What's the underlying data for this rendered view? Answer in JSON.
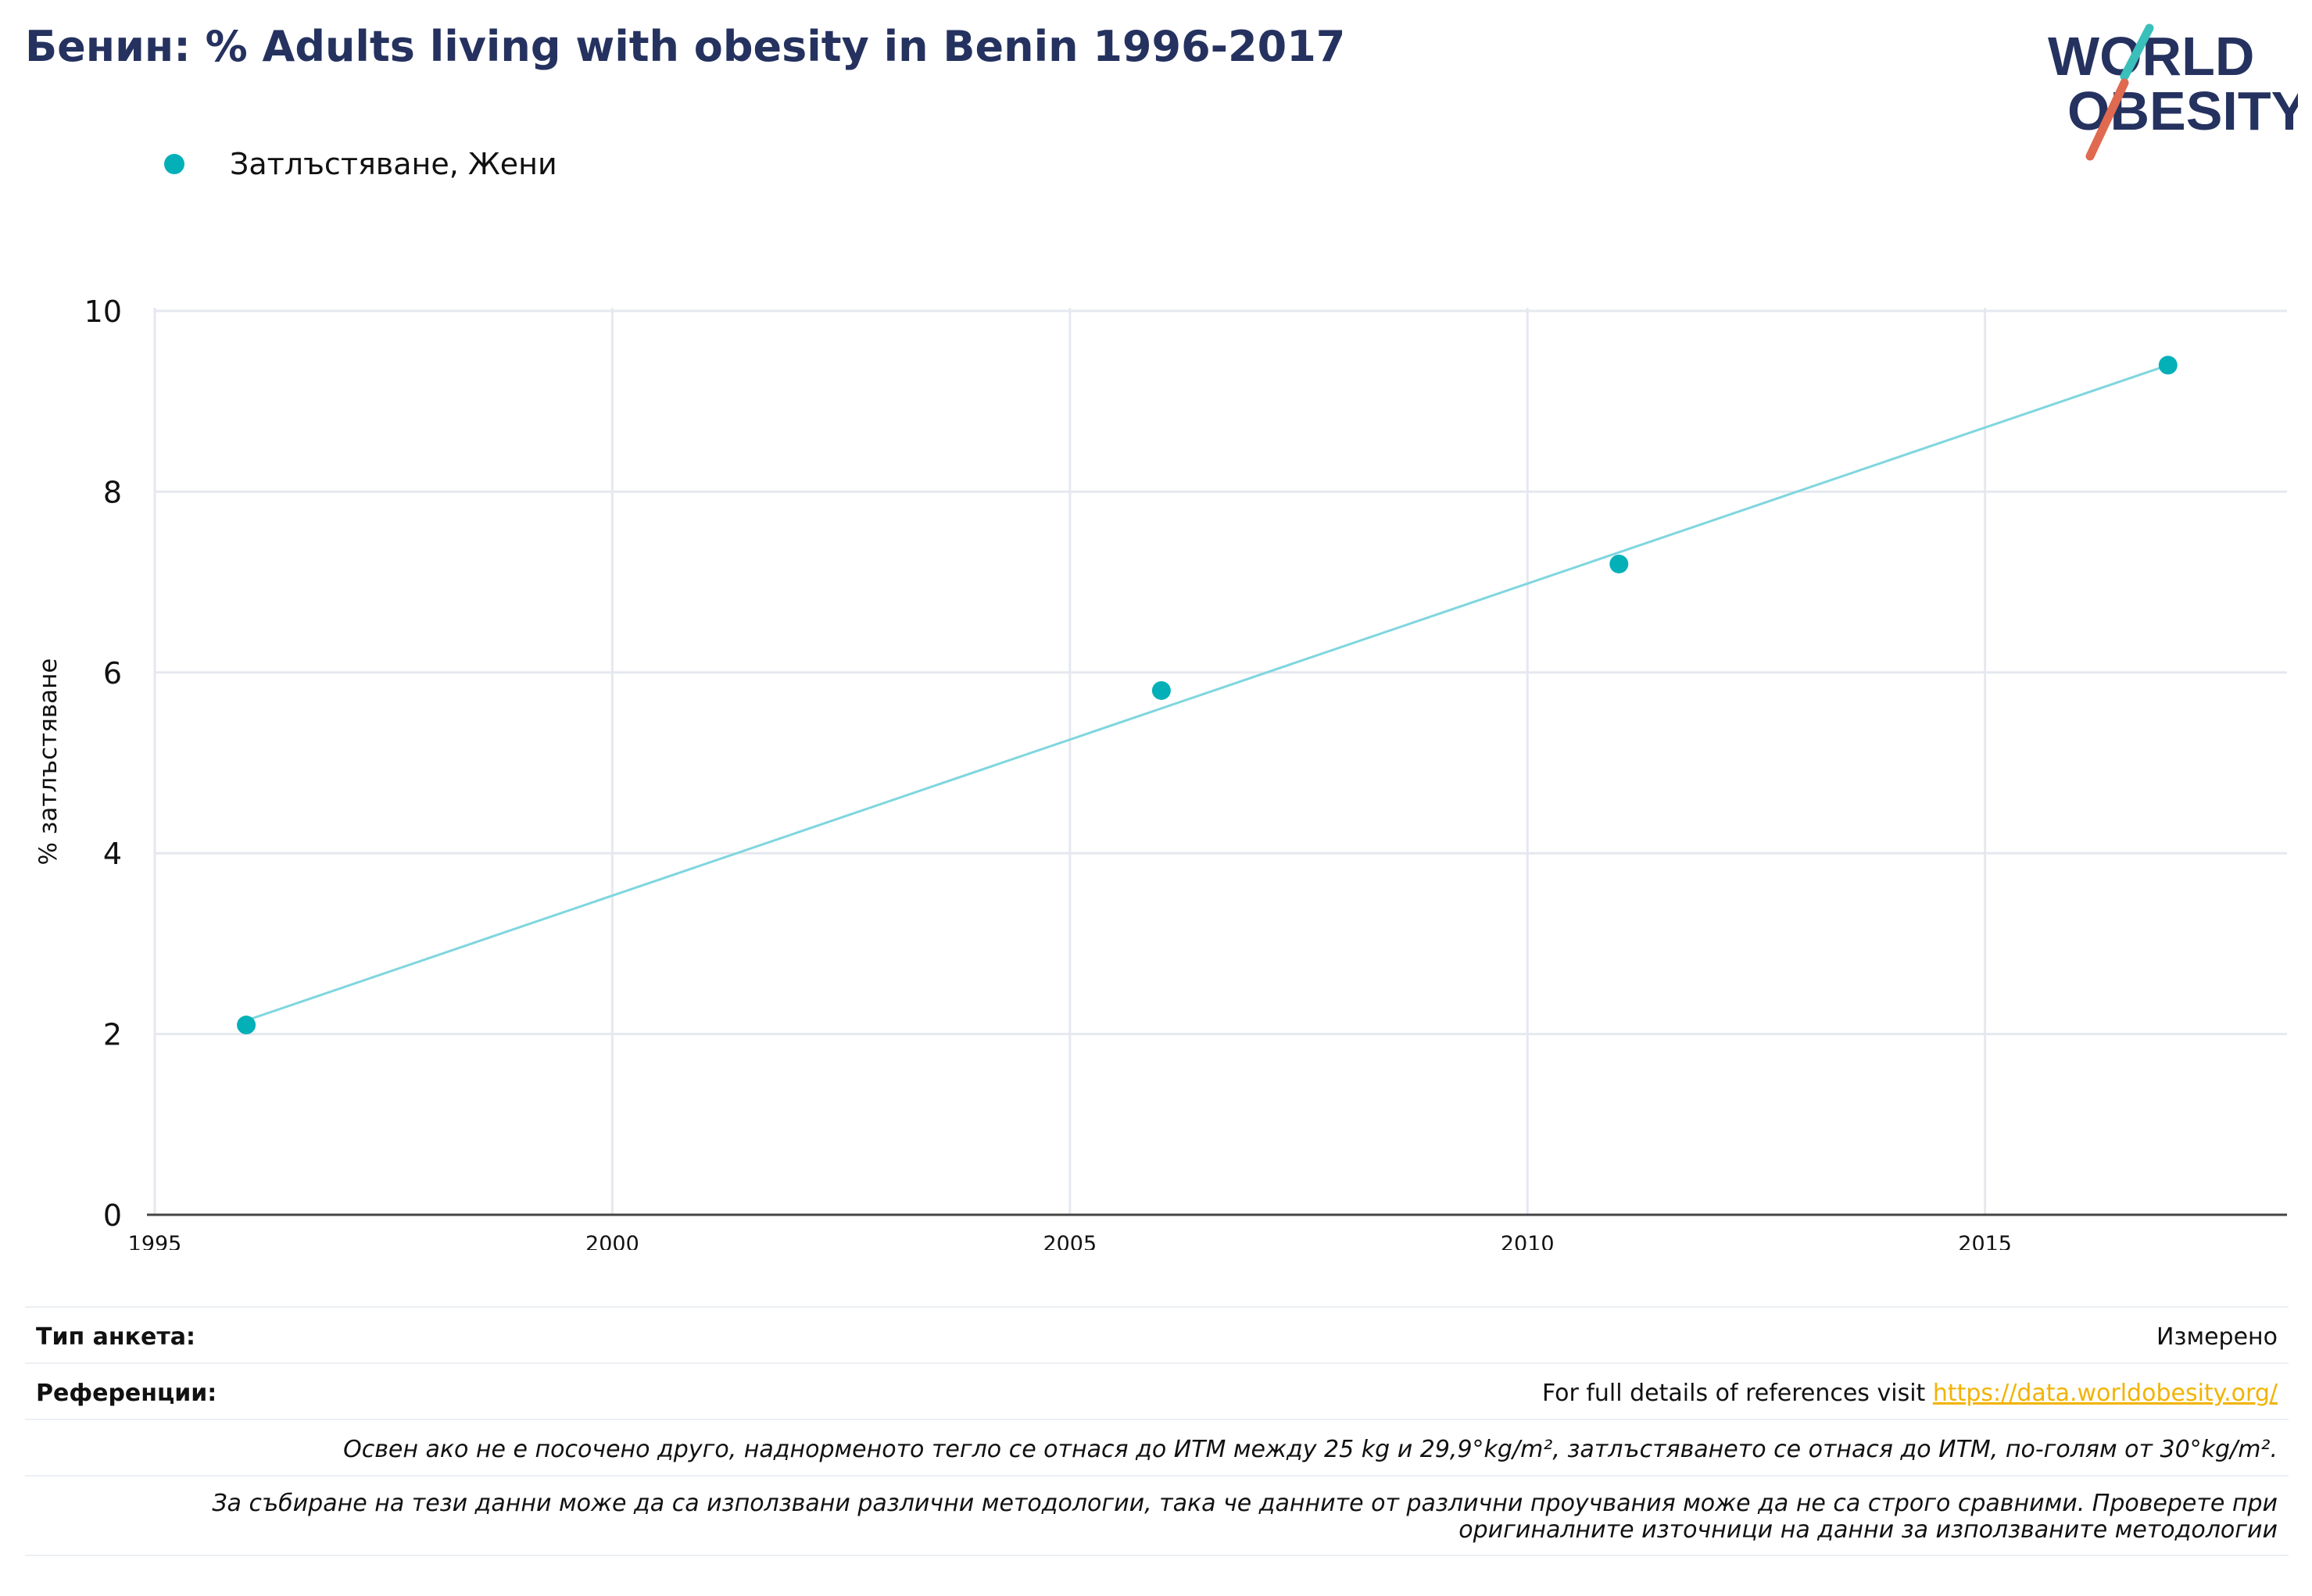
{
  "title": "Бенин: % Adults living with obesity in Benin 1996-2017",
  "logo": {
    "line1": "WORLD",
    "line2": "OBESITY"
  },
  "colors": {
    "title": "#25325f",
    "series": "#04b0b8",
    "trend": "#7fd6de",
    "grid": "#e6e8ef",
    "link": "#f2b304",
    "logo_slash_top": "#3bbfba",
    "logo_slash_bottom": "#e06a50"
  },
  "chart_data": {
    "type": "scatter",
    "title": "Бенин: % Adults living with obesity in Benin 1996-2017",
    "xlabel": "",
    "ylabel": "% затлъстяване",
    "xlim": [
      1995,
      2018.3
    ],
    "ylim": [
      0,
      10
    ],
    "x_ticks": [
      1995,
      2000,
      2005,
      2010,
      2015
    ],
    "y_ticks": [
      0,
      2,
      4,
      6,
      8,
      10
    ],
    "grid": true,
    "legend_position": "top-left",
    "series": [
      {
        "name": "Затлъстяване, Жени",
        "x": [
          1996,
          2006,
          2011,
          2017
        ],
        "y": [
          2.1,
          5.8,
          7.2,
          9.4
        ]
      }
    ],
    "trendline": {
      "x": [
        1996,
        2017
      ],
      "y": [
        2.15,
        9.4
      ]
    }
  },
  "footer": {
    "survey_type_label": "Тип анкета:",
    "survey_type_value": "Измерено",
    "references_label": "Референции:",
    "references_text": "For full details of references visit ",
    "references_link": "https://data.worldobesity.org/",
    "note1": "Освен ако не е посочено друго, наднорменото тегло се отнася до ИТМ между 25 kg и 29,9°kg/m², затлъстяването се отнася до ИТМ, по-голям от 30°kg/m².",
    "note2_line1": "За събиране на тези данни може да са използвани различни методологии, така че данните от различни проучвания може да не са строго сравними. Проверете при",
    "note2_line2": "оригиналните източници на данни за използваните методологии"
  }
}
